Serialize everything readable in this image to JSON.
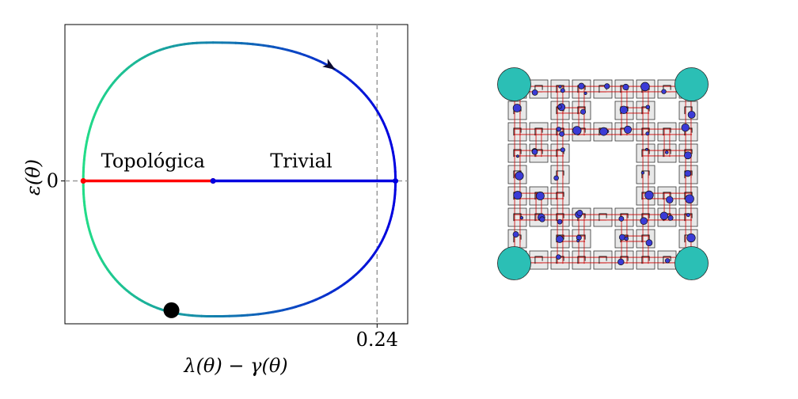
{
  "chart_data": [
    {
      "type": "line",
      "xlabel": "λ(θ) − γ(θ)",
      "ylabel": "ε(θ)",
      "xticks": [
        {
          "value": 0.24,
          "label": "0.24"
        }
      ],
      "yticks": [
        {
          "value": 0,
          "label": "0"
        }
      ],
      "xlim": [
        -0.015,
        0.265
      ],
      "ylim": [
        -0.95,
        1.04
      ],
      "grid": false,
      "reference_lines": [
        {
          "orientation": "vertical",
          "value": 0.24,
          "style": "dashed",
          "color": "#999999"
        },
        {
          "orientation": "horizontal",
          "value": 0,
          "style": "dashed",
          "color": "#999999"
        }
      ],
      "curve": {
        "description": "closed loop colored by parameter",
        "x_min": 0.0,
        "x_max": 0.255,
        "y_min": -0.9,
        "y_max": 0.92,
        "left_color": "#22dd88",
        "right_color": "#0000e0",
        "arrow_direction": "clockwise"
      },
      "segments": [
        {
          "name": "Topológica",
          "x_start": 0.0,
          "x_end": 0.106,
          "y": 0,
          "color": "#ff0000"
        },
        {
          "name": "Trivial",
          "x_start": 0.106,
          "x_end": 0.255,
          "y": 0,
          "color": "#0000e0"
        }
      ],
      "annotations": [
        {
          "text": "Topológica",
          "x": 0.057,
          "y": 0.09
        },
        {
          "text": "Trivial",
          "x": 0.178,
          "y": 0.09
        }
      ],
      "marker": {
        "x": 0.072,
        "y": -0.86,
        "color": "#000000"
      }
    },
    {
      "type": "diagram",
      "description": "Sierpinski-carpet lattice of squares with circles and red links",
      "colors": {
        "corner_circle": "#2bbfb5",
        "site_circle": "#3b3bd6",
        "link": "#cc0000",
        "cell_fill": "#e8e8e8",
        "cell_stroke": "#333333"
      }
    }
  ]
}
